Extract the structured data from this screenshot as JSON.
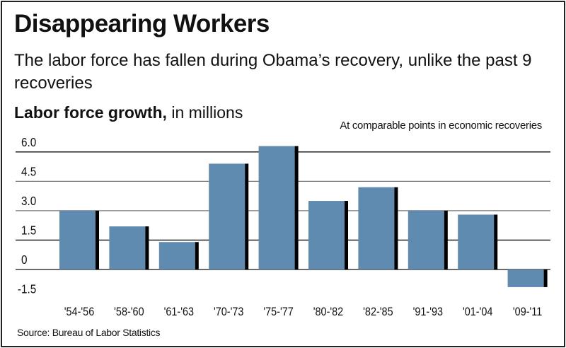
{
  "title": "Disappearing Workers",
  "subtitle": "The labor force has fallen during Obama’s recovery, unlike the past 9 recoveries",
  "source": "Source: Bureau of Labor Statistics",
  "colors": {
    "bar": "#608bb1",
    "shadow": "#000000"
  },
  "chart_data": {
    "type": "bar",
    "title": "Disappearing Workers",
    "ylabel_bold": "Labor force growth,",
    "ylabel_rest": " in millions",
    "annotation": "At comparable points in economic recoveries",
    "categories": [
      "'54-'56",
      "'58-'60",
      "'61-'63",
      "'70-'73",
      "'75-'77",
      "'80-'82",
      "'82-'85",
      "'91-'93",
      "'01-'04",
      "'09-'11"
    ],
    "values": [
      3.0,
      2.2,
      1.4,
      5.4,
      6.3,
      3.5,
      4.2,
      3.0,
      2.8,
      -0.9
    ],
    "yticks": [
      6.0,
      4.5,
      3.0,
      1.5,
      0,
      -1.5
    ],
    "ytick_labels": [
      "6.0",
      "4.5",
      "3.0",
      "1.5",
      "0",
      "-1.5"
    ],
    "ylim": [
      -1.5,
      6.5
    ],
    "grid": true
  }
}
